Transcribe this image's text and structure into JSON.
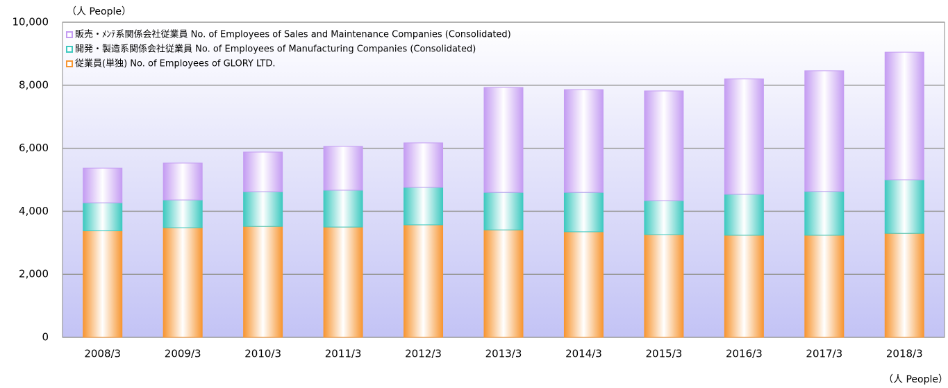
{
  "chart_data": {
    "type": "stacked_bar",
    "y_axis_label": "（人 People）",
    "x_axis_label": "（人 People）",
    "categories": [
      "2008/3",
      "2009/3",
      "2010/3",
      "2011/3",
      "2012/3",
      "2013/3",
      "2014/3",
      "2015/3",
      "2016/3",
      "2017/3",
      "2018/3"
    ],
    "series": [
      {
        "name": "従業員(単独) No. of Employees of GLORY LTD.",
        "color": "#f79632",
        "values": [
          3380,
          3480,
          3520,
          3500,
          3570,
          3410,
          3350,
          3260,
          3240,
          3240,
          3300
        ]
      },
      {
        "name": "開発・製造系関係会社従業員 No. of Employees of Manufacturing Companies (Consolidated)",
        "color": "#3ec9c0",
        "values": [
          890,
          880,
          1100,
          1170,
          1190,
          1190,
          1250,
          1080,
          1300,
          1390,
          1700
        ]
      },
      {
        "name": "販売・ﾒﾝﾃ系関係会社従業員 No. of Employees of Sales and Maintenance Companies (Consolidated)",
        "color": "#c49cf2",
        "values": [
          1100,
          1170,
          1260,
          1390,
          1410,
          3330,
          3260,
          3480,
          3660,
          3830,
          4050
        ]
      }
    ],
    "ylim": [
      0,
      10000
    ],
    "yticks": [
      0,
      {
        "value": 2000,
        "label": "2,000"
      },
      {
        "value": 4000,
        "label": "4,000"
      },
      {
        "value": 6000,
        "label": "6,000"
      },
      {
        "value": 8000,
        "label": "8,000"
      },
      {
        "value": 10000,
        "label": "10,000"
      }
    ],
    "grid": true
  }
}
